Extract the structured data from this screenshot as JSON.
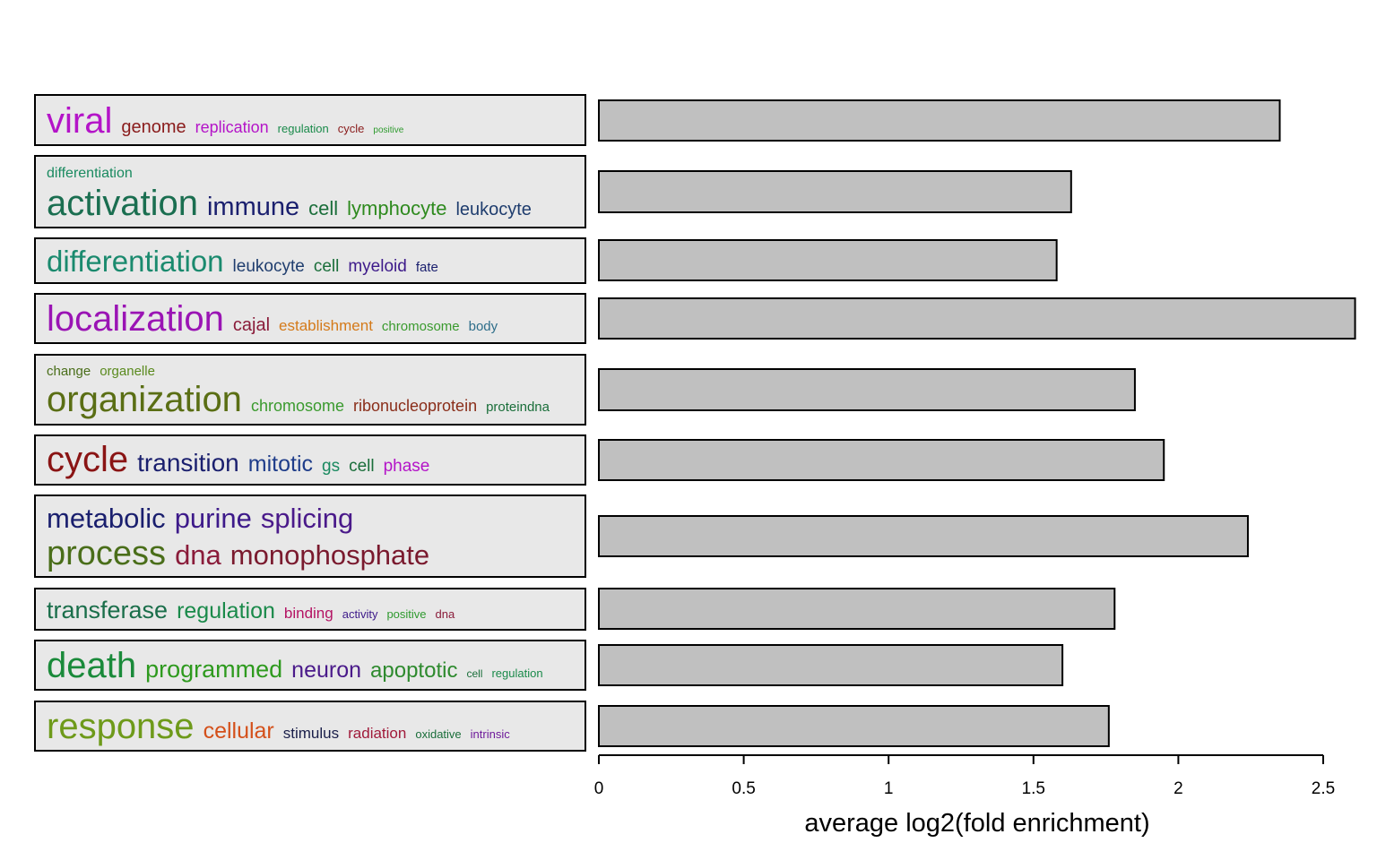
{
  "chart_data": {
    "type": "bar",
    "orientation": "horizontal",
    "xlabel": "average log2(fold enrichment)",
    "xlim": [
      0,
      2.5
    ],
    "xticks": [
      "0",
      "0.5",
      "1",
      "1.5",
      "2",
      "2.5"
    ],
    "bar_color": "#c0c0c0",
    "clusters": [
      {
        "value": 2.35,
        "lines": [
          [
            {
              "w": "viral",
              "c": "#b414c8",
              "s": 40
            },
            {
              "w": "genome",
              "c": "#8a1c1c",
              "s": 20
            },
            {
              "w": "replication",
              "c": "#b414c8",
              "s": 18
            },
            {
              "w": "regulation",
              "c": "#1a8a4a",
              "s": 13
            },
            {
              "w": "cycle",
              "c": "#8a1c1c",
              "s": 13
            },
            {
              "w": "positive",
              "c": "#2e9a2e",
              "s": 10
            }
          ]
        ]
      },
      {
        "value": 1.63,
        "lines": [
          [
            {
              "w": "differentiation",
              "c": "#1a8a60",
              "s": 16
            }
          ],
          [
            {
              "w": "activation",
              "c": "#1a6e50",
              "s": 40
            },
            {
              "w": "immune",
              "c": "#1a1f6e",
              "s": 29
            },
            {
              "w": "cell",
              "c": "#1a6e3a",
              "s": 22
            },
            {
              "w": "lymphocyte",
              "c": "#2e8a1e",
              "s": 22
            },
            {
              "w": "leukocyte",
              "c": "#1f3d6e",
              "s": 20
            }
          ]
        ]
      },
      {
        "value": 1.58,
        "lines": [
          [
            {
              "w": "differentiation",
              "c": "#1a8a6e",
              "s": 33
            },
            {
              "w": "leukocyte",
              "c": "#1f3d6e",
              "s": 19
            },
            {
              "w": "cell",
              "c": "#1a6e3a",
              "s": 19
            },
            {
              "w": "myeloid",
              "c": "#3d1a8a",
              "s": 19
            },
            {
              "w": "fate",
              "c": "#1a1f6e",
              "s": 15
            }
          ]
        ]
      },
      {
        "value": 2.61,
        "lines": [
          [
            {
              "w": "localization",
              "c": "#9a14b4",
              "s": 40
            },
            {
              "w": "cajal",
              "c": "#8a1c3a",
              "s": 20
            },
            {
              "w": "establishment",
              "c": "#d47a1a",
              "s": 17
            },
            {
              "w": "chromosome",
              "c": "#3a9a2e",
              "s": 15
            },
            {
              "w": "body",
              "c": "#2e6e8a",
              "s": 15
            }
          ]
        ]
      },
      {
        "value": 1.85,
        "lines": [
          [
            {
              "w": "change",
              "c": "#4a6e1a",
              "s": 15
            },
            {
              "w": "organelle",
              "c": "#5a8a1e",
              "s": 15
            }
          ],
          [
            {
              "w": "organization",
              "c": "#5a6e14",
              "s": 40
            },
            {
              "w": "chromosome",
              "c": "#3a9a2e",
              "s": 18
            },
            {
              "w": "ribonucleoprotein",
              "c": "#8a2e1a",
              "s": 18
            },
            {
              "w": "proteindna",
              "c": "#1a6e3a",
              "s": 15
            }
          ]
        ]
      },
      {
        "value": 1.95,
        "lines": [
          [
            {
              "w": "cycle",
              "c": "#8a1414",
              "s": 40
            },
            {
              "w": "transition",
              "c": "#1a1f6e",
              "s": 28
            },
            {
              "w": "mitotic",
              "c": "#1f3d8a",
              "s": 25
            },
            {
              "w": "gs",
              "c": "#1a8a60",
              "s": 19
            },
            {
              "w": "cell",
              "c": "#1a6e3a",
              "s": 19
            },
            {
              "w": "phase",
              "c": "#b414c8",
              "s": 19
            }
          ]
        ]
      },
      {
        "value": 2.24,
        "lines": [
          [
            {
              "w": "metabolic",
              "c": "#1a1f6e",
              "s": 31
            },
            {
              "w": "purine",
              "c": "#3d1a8a",
              "s": 31
            },
            {
              "w": "splicing",
              "c": "#4a1a8a",
              "s": 31
            }
          ],
          [
            {
              "w": "process",
              "c": "#4a6e1a",
              "s": 38
            },
            {
              "w": "dna",
              "c": "#8a1c3a",
              "s": 31
            },
            {
              "w": "monophosphate",
              "c": "#7a1a2e",
              "s": 31
            }
          ]
        ]
      },
      {
        "value": 1.78,
        "lines": [
          [
            {
              "w": "transferase",
              "c": "#1a6e4a",
              "s": 27
            },
            {
              "w": "regulation",
              "c": "#1a8a4a",
              "s": 25
            },
            {
              "w": "binding",
              "c": "#b41464",
              "s": 17
            },
            {
              "w": "activity",
              "c": "#3d1a8a",
              "s": 13
            },
            {
              "w": "positive",
              "c": "#2e9a2e",
              "s": 13
            },
            {
              "w": "dna",
              "c": "#8a1c3a",
              "s": 13
            }
          ]
        ]
      },
      {
        "value": 1.6,
        "lines": [
          [
            {
              "w": "death",
              "c": "#1a8a3a",
              "s": 40
            },
            {
              "w": "programmed",
              "c": "#2e9a1e",
              "s": 27
            },
            {
              "w": "neuron",
              "c": "#4a1a8a",
              "s": 25
            },
            {
              "w": "apoptotic",
              "c": "#2e8a2e",
              "s": 24
            },
            {
              "w": "cell",
              "c": "#1a6e3a",
              "s": 12
            },
            {
              "w": "regulation",
              "c": "#1a8a4a",
              "s": 13
            }
          ]
        ]
      },
      {
        "value": 1.76,
        "lines": [
          [
            {
              "w": "response",
              "c": "#6e9a1a",
              "s": 40
            },
            {
              "w": "cellular",
              "c": "#d4501a",
              "s": 25
            },
            {
              "w": "stimulus",
              "c": "#1a1f4a",
              "s": 17
            },
            {
              "w": "radiation",
              "c": "#a01a3a",
              "s": 17
            },
            {
              "w": "oxidative",
              "c": "#1a6e3a",
              "s": 13
            },
            {
              "w": "intrinsic",
              "c": "#6e1a9a",
              "s": 13
            }
          ]
        ]
      }
    ]
  }
}
